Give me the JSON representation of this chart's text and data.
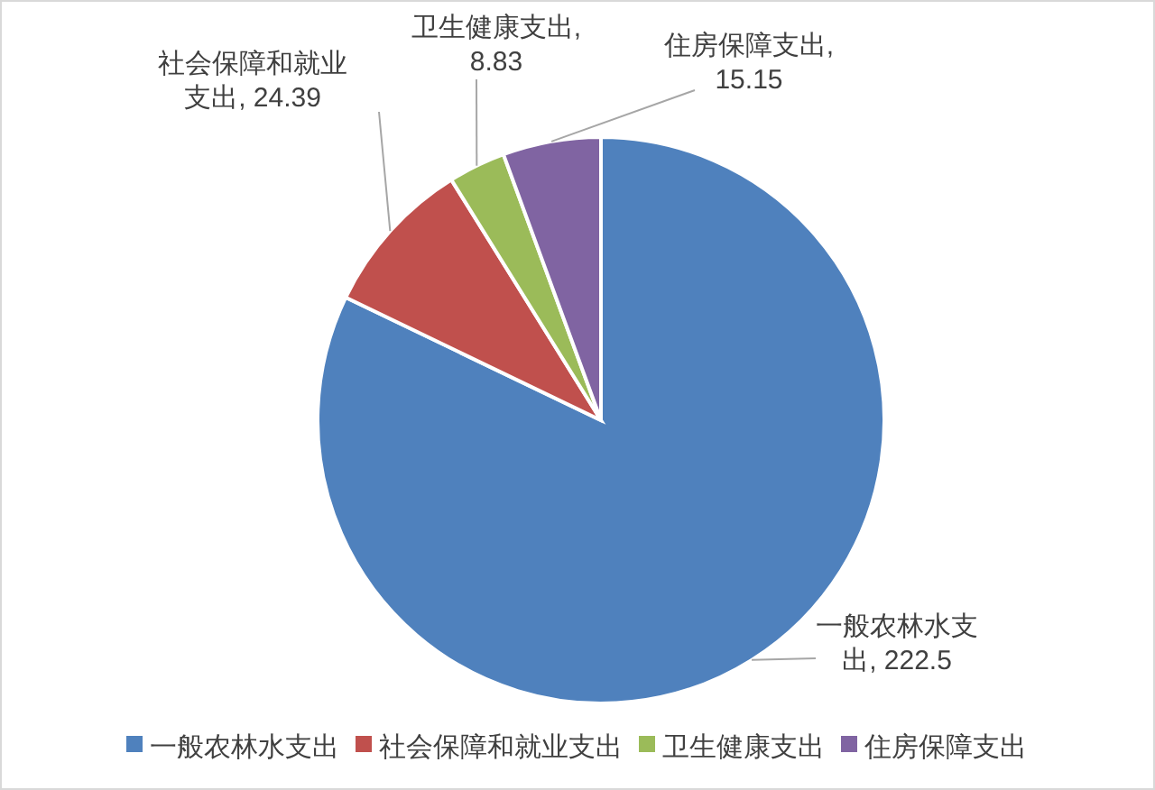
{
  "chart_data": {
    "type": "pie",
    "categories": [
      "一般农林水支出",
      "社会保障和就业支出",
      "卫生健康支出",
      "住房保障支出"
    ],
    "values": [
      222.5,
      24.39,
      8.83,
      15.15
    ],
    "colors": [
      "#4f81bd",
      "#c0504d",
      "#9bbb59",
      "#8064a2"
    ],
    "value_labels": [
      "一般农林水支出, 222.5",
      "社会保障和就业支出, 24.39",
      "卫生健康支出, 8.83",
      "住房保障支出, 15.15"
    ],
    "legend": "bottom"
  }
}
